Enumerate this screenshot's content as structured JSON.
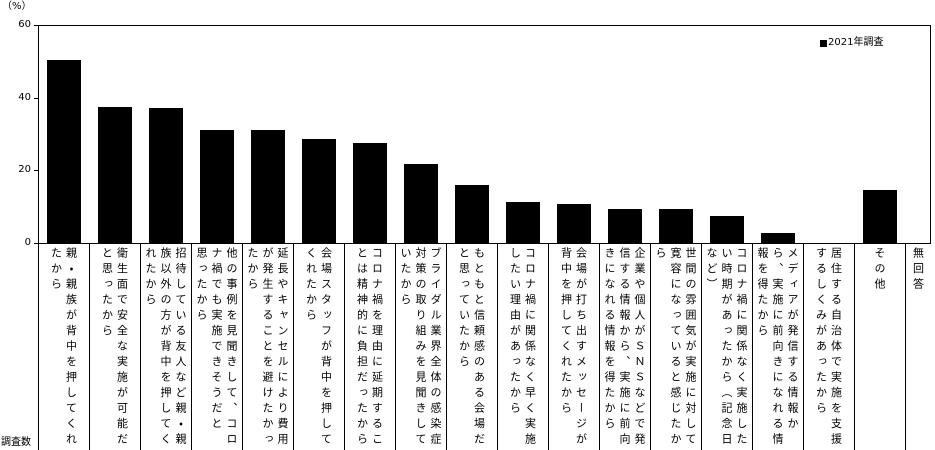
{
  "chart_data": {
    "type": "bar",
    "ylabel": "（%）",
    "ylim": [
      0,
      60
    ],
    "yticks": [
      0,
      20,
      40,
      60
    ],
    "grid": false,
    "legend_position": "top-right",
    "categories": [
      "親・親族が背中を押してくれたから",
      "衛生面で安全な実施が可能だと思ったから",
      "招待している友人など親・親族以外の方が背中を押してくれたから",
      "他の事例を見聞きして、コロナ禍でも実施できそうだと思ったから",
      "延長やキャンセルにより費用が発生することを避けたかったから",
      "会場スタッフが背中を押してくれたから",
      "コロナ禍を理由に延期することは精神的に負担だったから",
      "ブライダル業界全体の感染症対策の取り組みを見聞きしていたから",
      "もともと信頼感のある会場だと思っていたから",
      "コロナ禍に関係なく早く実施したい理由があったから",
      "会場が打ち出すメッセージが背中を押してくれたから",
      "企業や個人がＳＮＳなどで発信する情報から、実施に前向きになれる情報を得たから",
      "世間の雰囲気が実施に対して寛容になっていると感じたから",
      "コロナ禍に関係なく実施したい時期があったから（記念日など）",
      "メディアが発信する情報から、実施に前向きになれる情報を得たから",
      "居住する自治体で実施を支援するしくみがあったから",
      "その他",
      "無回答"
    ],
    "series": [
      {
        "name": "2021年調査",
        "color": "#000000",
        "values": [
          50.3,
          37.4,
          37.2,
          31.1,
          31.1,
          28.6,
          27.5,
          21.7,
          16.1,
          11.3,
          10.7,
          9.4,
          9.4,
          7.4,
          2.8,
          0,
          14.6,
          0
        ]
      }
    ]
  },
  "table": {
    "row_header": "調査数"
  }
}
